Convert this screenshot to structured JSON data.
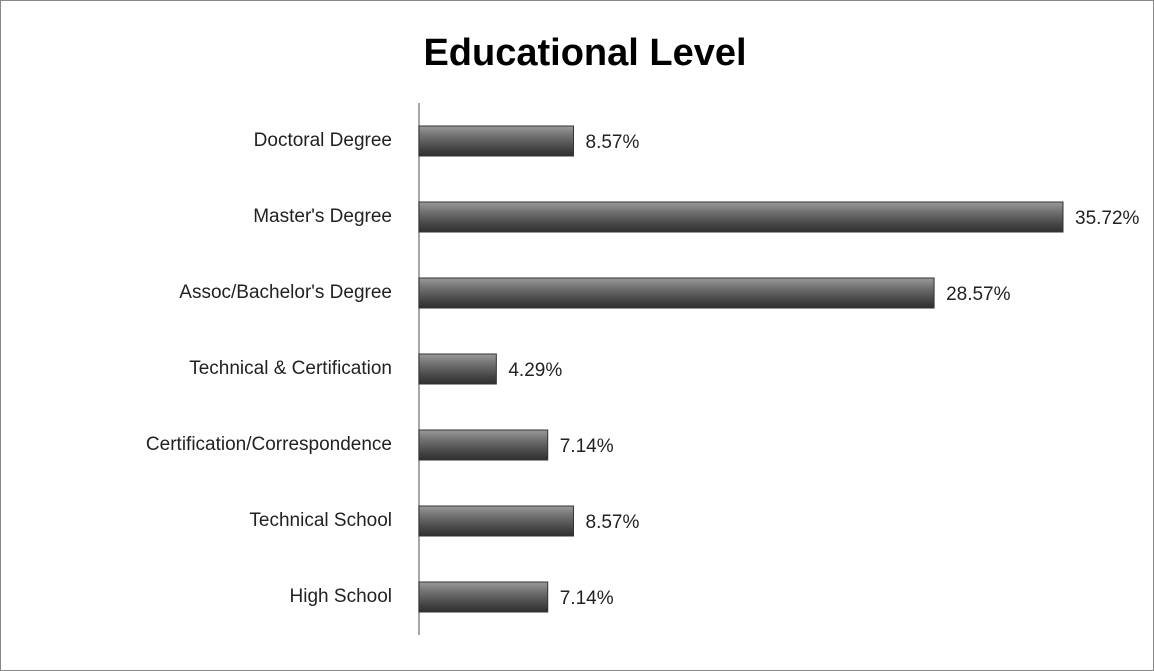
{
  "chart_data": {
    "type": "bar",
    "orientation": "horizontal",
    "title": "Educational Level",
    "categories": [
      "Doctoral Degree",
      "Master's Degree",
      "Assoc/Bachelor's Degree",
      "Technical & Certification",
      "Certification/Correspondence",
      "Technical School",
      "High School"
    ],
    "values": [
      8.57,
      35.72,
      28.57,
      4.29,
      7.14,
      8.57,
      7.14
    ],
    "value_labels": [
      "8.57%",
      "35.72%",
      "28.57%",
      "4.29%",
      "7.14%",
      "8.57%",
      "7.14%"
    ],
    "color": "#5a5a5a"
  }
}
